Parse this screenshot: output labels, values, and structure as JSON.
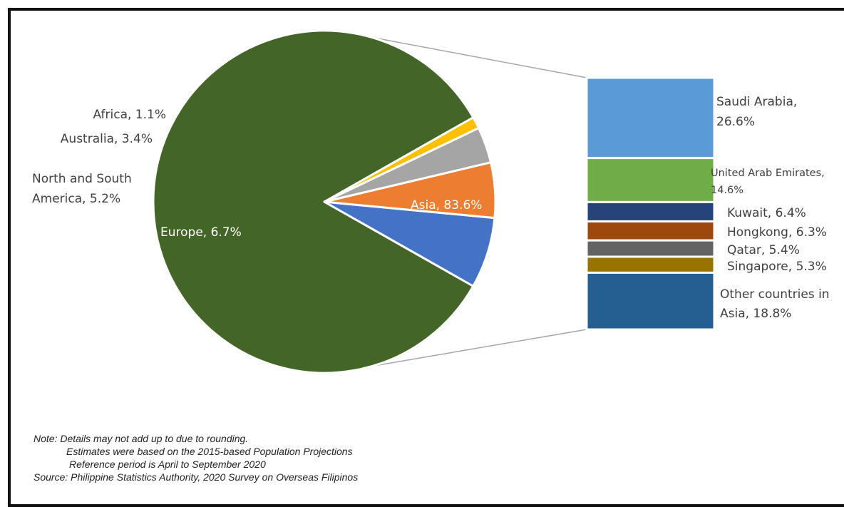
{
  "chart_data": [
    {
      "type": "pie",
      "series": [
        {
          "label": "Asia, 83.6%",
          "value": 83.6,
          "color": "#436527"
        },
        {
          "label": "Europe, 6.7%",
          "value": 6.7,
          "color": "#4472C4"
        },
        {
          "label": "North and South America, 5.2%",
          "value": 5.2,
          "color": "#ED7D31"
        },
        {
          "label": "Australia, 3.4%",
          "value": 3.4,
          "color": "#A5A5A5"
        },
        {
          "label": "Africa, 1.1%",
          "value": 1.1,
          "color": "#FFC000"
        }
      ]
    },
    {
      "type": "bar",
      "stacked": true,
      "categories": [
        "Saudi Arabia",
        "United Arab Emirates",
        "Kuwait",
        "Hongkong",
        "Qatar",
        "Singapore",
        "Other countries in Asia"
      ],
      "values": [
        26.6,
        14.6,
        6.4,
        6.3,
        5.4,
        5.3,
        18.8
      ],
      "colors": [
        "#5B9BD5",
        "#70AD47",
        "#264478",
        "#9E480E",
        "#636363",
        "#997300",
        "#255E91"
      ]
    }
  ],
  "labels": {
    "africa": "Africa, 1.1%",
    "australia": "Australia, 3.4%",
    "america_line1": "North and South",
    "america_line2": "America, 5.2%",
    "europe": "Europe, 6.7%",
    "asia": "Asia, 83.6%",
    "saudi_line1": "Saudi Arabia,",
    "saudi_line2": "26.6%",
    "uae_line1": "United Arab Emirates,",
    "uae_line2": "14.6%",
    "kuwait": "Kuwait, 6.4%",
    "hongkong": "Hongkong, 6.3%",
    "qatar": "Qatar, 5.4%",
    "singapore": "Singapore, 5.3%",
    "other_line1": "Other countries in",
    "other_line2": "Asia, 18.8%"
  },
  "notes": {
    "line1": "Note: Details may not add up to due to rounding.",
    "line2": "Estimates were based on the 2015-based Population Projections",
    "line3": "Reference period is April to September 2020",
    "line4": "Source: Philippine Statistics Authority, 2020 Survey on Overseas Filipinos"
  }
}
